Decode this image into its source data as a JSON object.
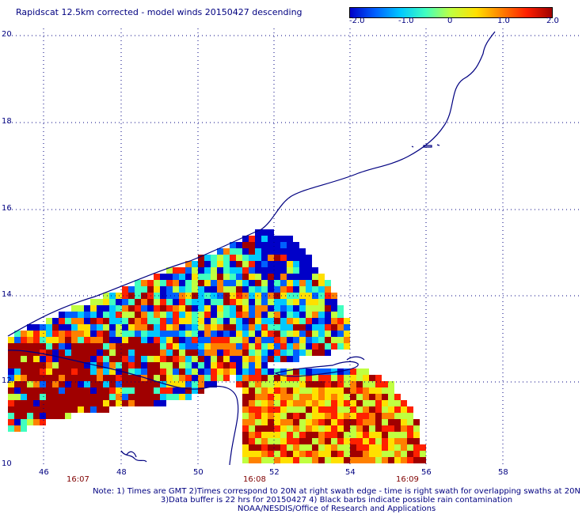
{
  "title": "Rapidscat 12.5km corrected - model winds 20150427 descending",
  "colorbar": {
    "ticks": [
      "-2.0",
      "-1.0",
      "0",
      "1.0",
      "2.0"
    ],
    "range": [
      -2.0,
      2.0
    ],
    "colors": [
      "#0000c8",
      "#0060ff",
      "#00c8ff",
      "#40ffc0",
      "#c0ff40",
      "#ffe000",
      "#ff8000",
      "#ff2000",
      "#a00000"
    ]
  },
  "map": {
    "lon_range": [
      45,
      59.5
    ],
    "lat_range": [
      10,
      20
    ],
    "lat_labels": [
      "20",
      "18",
      "16",
      "14",
      "12",
      "10"
    ],
    "lon_labels": [
      "46",
      "48",
      "50",
      "52",
      "54",
      "56",
      "58"
    ],
    "coast_color": "#000080",
    "grid": "dotted"
  },
  "time_labels": [
    "16:07",
    "16:08",
    "16:09"
  ],
  "notes": [
    "Note: 1) Times are GMT 2)Times correspond to 20N at right swath edge - time is right swath for overlapping swaths at 20N",
    "3)Data buffer is 22 hrs for 20150427 4) Black barbs indicate possible rain contamination",
    "NOAA/NESDIS/Office of Research and Applications"
  ]
}
